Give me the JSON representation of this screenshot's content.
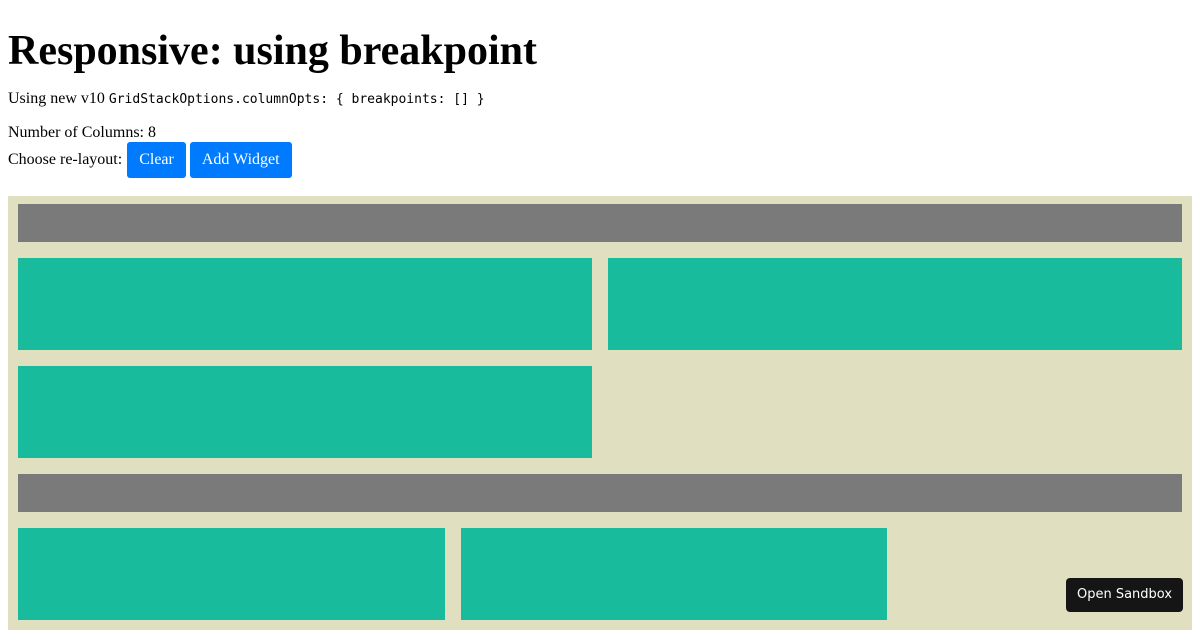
{
  "title": "Responsive: using breakpoint",
  "intro": {
    "prefix": "Using new v10 ",
    "code": "GridStackOptions.columnOpts: { breakpoints: [] }"
  },
  "columns_label": "Number of Columns: 8",
  "relayout": {
    "label": "Choose re-layout:",
    "clear_label": "Clear",
    "add_widget_label": "Add Widget"
  },
  "colors": {
    "grid_bg": "#e0e0c0",
    "widget_gray": "#7a7a7a",
    "widget_teal": "#18bc9c",
    "button": "#007bff"
  },
  "sandbox_label": "Open Sandbox"
}
